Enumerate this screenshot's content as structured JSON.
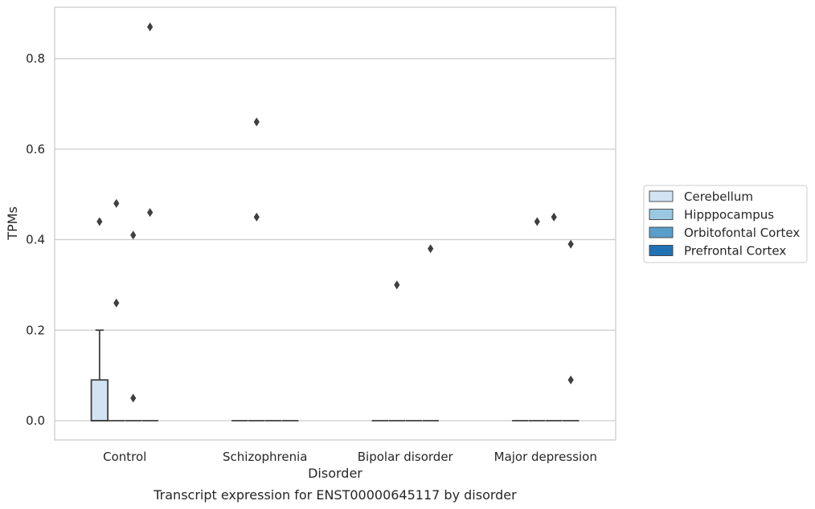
{
  "caption": "Transcript expression for ENST00000645117 by disorder",
  "chart_data": {
    "type": "box",
    "title": "",
    "xlabel": "Disorder",
    "ylabel": "TPMs",
    "categories": [
      "Control",
      "Schizophrenia",
      "Bipolar disorder",
      "Major depression"
    ],
    "ylim": [
      -0.042,
      0.917
    ],
    "yticks": [
      0.0,
      0.2,
      0.4,
      0.6,
      0.8
    ],
    "ytick_labels": [
      "0.0",
      "0.2",
      "0.4",
      "0.6",
      "0.8"
    ],
    "grid": "horizontal",
    "legend_position": "right",
    "series": [
      {
        "name": "Cerebellum",
        "color": "#d2e3f3",
        "boxes": [
          {
            "category": "Control",
            "q1": 0.0,
            "median": 0.0,
            "q3": 0.09,
            "whisker_low": 0.0,
            "whisker_high": 0.2,
            "outliers": [
              0.44
            ]
          },
          {
            "category": "Schizophrenia",
            "q1": 0.0,
            "median": 0.0,
            "q3": 0.0,
            "whisker_low": 0.0,
            "whisker_high": 0.0,
            "outliers": []
          },
          {
            "category": "Bipolar disorder",
            "q1": 0.0,
            "median": 0.0,
            "q3": 0.0,
            "whisker_low": 0.0,
            "whisker_high": 0.0,
            "outliers": []
          },
          {
            "category": "Major depression",
            "q1": 0.0,
            "median": 0.0,
            "q3": 0.0,
            "whisker_low": 0.0,
            "whisker_high": 0.0,
            "outliers": []
          }
        ]
      },
      {
        "name": "Hipppocampus",
        "color": "#9ac8e0",
        "boxes": [
          {
            "category": "Control",
            "q1": 0.0,
            "median": 0.0,
            "q3": 0.0,
            "whisker_low": 0.0,
            "whisker_high": 0.0,
            "outliers": [
              0.48,
              0.26
            ]
          },
          {
            "category": "Schizophrenia",
            "q1": 0.0,
            "median": 0.0,
            "q3": 0.0,
            "whisker_low": 0.0,
            "whisker_high": 0.0,
            "outliers": [
              0.66,
              0.45
            ]
          },
          {
            "category": "Bipolar disorder",
            "q1": 0.0,
            "median": 0.0,
            "q3": 0.0,
            "whisker_low": 0.0,
            "whisker_high": 0.0,
            "outliers": [
              0.3
            ]
          },
          {
            "category": "Major depression",
            "q1": 0.0,
            "median": 0.0,
            "q3": 0.0,
            "whisker_low": 0.0,
            "whisker_high": 0.0,
            "outliers": [
              0.44
            ]
          }
        ]
      },
      {
        "name": "Orbitofontal Cortex",
        "color": "#5a9fcc",
        "boxes": [
          {
            "category": "Control",
            "q1": 0.0,
            "median": 0.0,
            "q3": 0.0,
            "whisker_low": 0.0,
            "whisker_high": 0.0,
            "outliers": [
              0.41,
              0.05
            ]
          },
          {
            "category": "Schizophrenia",
            "q1": 0.0,
            "median": 0.0,
            "q3": 0.0,
            "whisker_low": 0.0,
            "whisker_high": 0.0,
            "outliers": []
          },
          {
            "category": "Bipolar disorder",
            "q1": 0.0,
            "median": 0.0,
            "q3": 0.0,
            "whisker_low": 0.0,
            "whisker_high": 0.0,
            "outliers": []
          },
          {
            "category": "Major depression",
            "q1": 0.0,
            "median": 0.0,
            "q3": 0.0,
            "whisker_low": 0.0,
            "whisker_high": 0.0,
            "outliers": [
              0.45
            ]
          }
        ]
      },
      {
        "name": "Prefrontal Cortex",
        "color": "#2171b5",
        "boxes": [
          {
            "category": "Control",
            "q1": 0.0,
            "median": 0.0,
            "q3": 0.0,
            "whisker_low": 0.0,
            "whisker_high": 0.0,
            "outliers": [
              0.87,
              0.46
            ]
          },
          {
            "category": "Schizophrenia",
            "q1": 0.0,
            "median": 0.0,
            "q3": 0.0,
            "whisker_low": 0.0,
            "whisker_high": 0.0,
            "outliers": []
          },
          {
            "category": "Bipolar disorder",
            "q1": 0.0,
            "median": 0.0,
            "q3": 0.0,
            "whisker_low": 0.0,
            "whisker_high": 0.0,
            "outliers": [
              0.38
            ]
          },
          {
            "category": "Major depression",
            "q1": 0.0,
            "median": 0.0,
            "q3": 0.0,
            "whisker_low": 0.0,
            "whisker_high": 0.0,
            "outliers": [
              0.39,
              0.09
            ]
          }
        ]
      }
    ]
  }
}
